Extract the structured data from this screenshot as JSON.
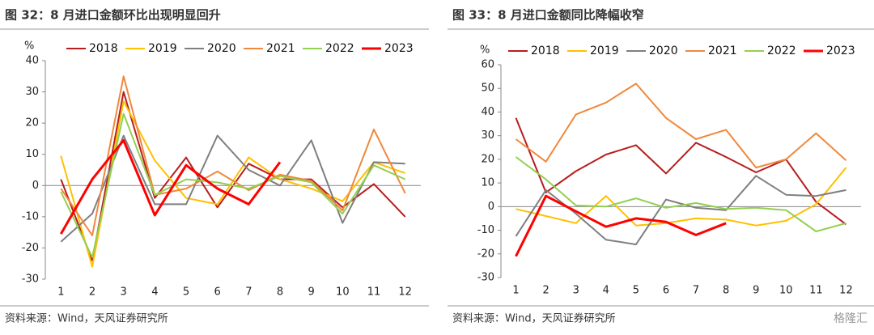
{
  "chart_data": [
    {
      "type": "line",
      "title": "图 32：8 月进口金额环比出现明显回升",
      "y_unit": "%",
      "source": "资料来源：Wind，天风证券研究所",
      "categories": [
        "1",
        "2",
        "3",
        "4",
        "5",
        "6",
        "7",
        "8",
        "9",
        "10",
        "11",
        "12"
      ],
      "ylim": [
        -30,
        40
      ],
      "yticks": [
        -30,
        -20,
        -10,
        0,
        10,
        20,
        30,
        40
      ],
      "series": [
        {
          "name": "2018",
          "color": "#b81d1d",
          "values": [
            2,
            -24,
            30,
            -4,
            9,
            -7,
            7,
            2,
            2,
            -7,
            0.5,
            -10
          ]
        },
        {
          "name": "2019",
          "color": "#ffc000",
          "values": [
            9.5,
            -26,
            27,
            8,
            -4,
            -6,
            9,
            2,
            -1,
            -5,
            7.5,
            4
          ]
        },
        {
          "name": "2020",
          "color": "#7f7f7f",
          "values": [
            -18,
            -9,
            16,
            -6,
            -6,
            16,
            5,
            0,
            14.5,
            -12,
            7.5,
            7
          ]
        },
        {
          "name": "2021",
          "color": "#f0883c",
          "values": [
            -1,
            -16,
            35,
            -3,
            -1,
            4.5,
            -1.5,
            3.5,
            1.5,
            -8,
            18,
            -2.5
          ]
        },
        {
          "name": "2022",
          "color": "#92d050",
          "values": [
            -2,
            -23,
            23,
            -3,
            2,
            1,
            -1,
            3,
            1,
            -9,
            6.5,
            2
          ]
        },
        {
          "name": "2023",
          "color": "#ff0000",
          "values": [
            -15.5,
            2,
            14.5,
            -9.5,
            6.5,
            -1,
            -6,
            7.5,
            null,
            null,
            null,
            null
          ]
        }
      ]
    },
    {
      "type": "line",
      "title": "图 33：8 月进口金额同比降幅收窄",
      "y_unit": "%",
      "source": "资料来源：Wind，天风证券研究所",
      "watermark": "格隆汇",
      "categories": [
        "1",
        "2",
        "3",
        "4",
        "5",
        "6",
        "7",
        "8",
        "9",
        "10",
        "11",
        "12"
      ],
      "ylim": [
        -30,
        60
      ],
      "yticks": [
        -30,
        -20,
        -10,
        0,
        10,
        20,
        30,
        40,
        50,
        60
      ],
      "series": [
        {
          "name": "2018",
          "color": "#b81d1d",
          "values": [
            37.5,
            6,
            15,
            22,
            26,
            14,
            27,
            21,
            14.5,
            20,
            2,
            -7.5
          ]
        },
        {
          "name": "2019",
          "color": "#ffc000",
          "values": [
            -1,
            -4,
            -7,
            4.5,
            -8,
            -7,
            -5,
            -5.5,
            -8,
            -6,
            1,
            16.5
          ]
        },
        {
          "name": "2020",
          "color": "#7f7f7f",
          "values": [
            -12.5,
            7,
            -3,
            -14,
            -16,
            3,
            -0.5,
            -1.5,
            13,
            5,
            4.5,
            7
          ]
        },
        {
          "name": "2021",
          "color": "#f0883c",
          "values": [
            28.5,
            19,
            39,
            44,
            52,
            37.5,
            28.5,
            32.5,
            16.5,
            20,
            31,
            19.5
          ]
        },
        {
          "name": "2022",
          "color": "#92d050",
          "values": [
            21,
            11.5,
            0.5,
            0,
            3.5,
            -0.5,
            1.5,
            -1,
            -0.5,
            -1.5,
            -10.5,
            -7
          ]
        },
        {
          "name": "2023",
          "color": "#ff0000",
          "values": [
            -21,
            4.5,
            -2,
            -8.5,
            -5,
            -6.5,
            -12,
            -7,
            null,
            null,
            null,
            null
          ]
        }
      ]
    }
  ]
}
